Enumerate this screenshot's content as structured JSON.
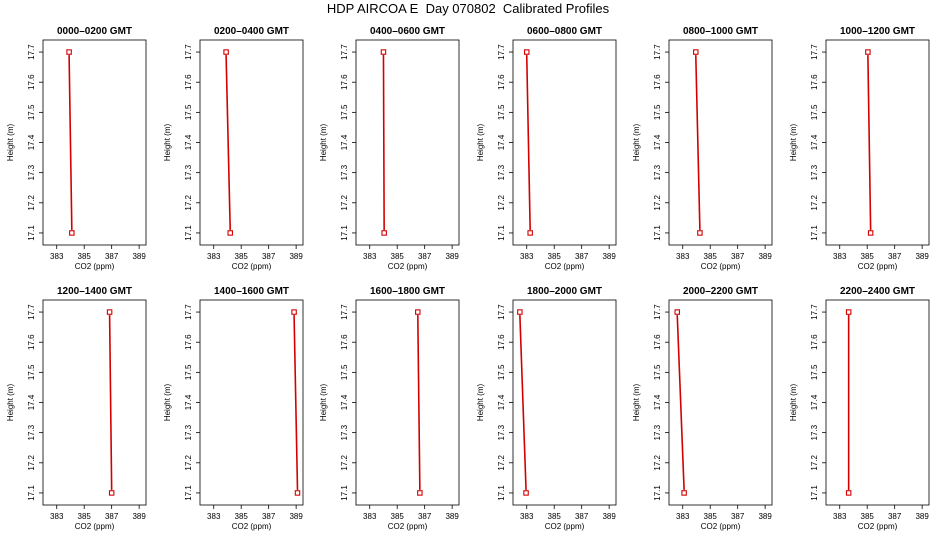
{
  "title": "HDP AIRCOA E  Day 070802  Calibrated Profiles",
  "colors": {
    "series": "#d40000",
    "axis": "#000000"
  },
  "chart_data": [
    {
      "type": "line",
      "title": "0000–0200 GMT",
      "xlabel": "CO2 (ppm)",
      "ylabel": "Height (m)",
      "xlim": [
        382,
        389.5
      ],
      "ylim": [
        17.06,
        17.74
      ],
      "xticks": [
        383,
        385,
        387,
        389
      ],
      "yticks": [
        17.1,
        17.2,
        17.3,
        17.4,
        17.5,
        17.6,
        17.7
      ],
      "grid": false,
      "series": [
        {
          "points": [
            [
              383.9,
              17.7
            ],
            [
              384.1,
              17.1
            ]
          ]
        }
      ]
    },
    {
      "type": "line",
      "title": "0200–0400 GMT",
      "xlabel": "CO2 (ppm)",
      "ylabel": "Height (m)",
      "xlim": [
        382,
        389.5
      ],
      "ylim": [
        17.06,
        17.74
      ],
      "xticks": [
        383,
        385,
        387,
        389
      ],
      "yticks": [
        17.1,
        17.2,
        17.3,
        17.4,
        17.5,
        17.6,
        17.7
      ],
      "grid": false,
      "series": [
        {
          "points": [
            [
              383.9,
              17.7
            ],
            [
              384.2,
              17.1
            ]
          ]
        }
      ]
    },
    {
      "type": "line",
      "title": "0400–0600 GMT",
      "xlabel": "CO2 (ppm)",
      "ylabel": "Height (m)",
      "xlim": [
        382,
        389.5
      ],
      "ylim": [
        17.06,
        17.74
      ],
      "xticks": [
        383,
        385,
        387,
        389
      ],
      "yticks": [
        17.1,
        17.2,
        17.3,
        17.4,
        17.5,
        17.6,
        17.7
      ],
      "grid": false,
      "series": [
        {
          "points": [
            [
              384.0,
              17.7
            ],
            [
              384.05,
              17.1
            ]
          ]
        }
      ]
    },
    {
      "type": "line",
      "title": "0600–0800 GMT",
      "xlabel": "CO2 (ppm)",
      "ylabel": "Height (m)",
      "xlim": [
        382,
        389.5
      ],
      "ylim": [
        17.06,
        17.74
      ],
      "xticks": [
        383,
        385,
        387,
        389
      ],
      "yticks": [
        17.1,
        17.2,
        17.3,
        17.4,
        17.5,
        17.6,
        17.7
      ],
      "grid": false,
      "series": [
        {
          "points": [
            [
              383.0,
              17.7
            ],
            [
              383.25,
              17.1
            ]
          ]
        }
      ]
    },
    {
      "type": "line",
      "title": "0800–1000 GMT",
      "xlabel": "CO2 (ppm)",
      "ylabel": "Height (m)",
      "xlim": [
        382,
        389.5
      ],
      "ylim": [
        17.06,
        17.74
      ],
      "xticks": [
        383,
        385,
        387,
        389
      ],
      "yticks": [
        17.1,
        17.2,
        17.3,
        17.4,
        17.5,
        17.6,
        17.7
      ],
      "grid": false,
      "series": [
        {
          "points": [
            [
              383.95,
              17.7
            ],
            [
              384.25,
              17.1
            ]
          ]
        }
      ]
    },
    {
      "type": "line",
      "title": "1000–1200 GMT",
      "xlabel": "CO2 (ppm)",
      "ylabel": "Height (m)",
      "xlim": [
        382,
        389.5
      ],
      "ylim": [
        17.06,
        17.74
      ],
      "xticks": [
        383,
        385,
        387,
        389
      ],
      "yticks": [
        17.1,
        17.2,
        17.3,
        17.4,
        17.5,
        17.6,
        17.7
      ],
      "grid": false,
      "series": [
        {
          "points": [
            [
              385.05,
              17.7
            ],
            [
              385.25,
              17.1
            ]
          ]
        }
      ]
    },
    {
      "type": "line",
      "title": "1200–1400 GMT",
      "xlabel": "CO2 (ppm)",
      "ylabel": "Height (m)",
      "xlim": [
        382,
        389.5
      ],
      "ylim": [
        17.06,
        17.74
      ],
      "xticks": [
        383,
        385,
        387,
        389
      ],
      "yticks": [
        17.1,
        17.2,
        17.3,
        17.4,
        17.5,
        17.6,
        17.7
      ],
      "grid": false,
      "series": [
        {
          "points": [
            [
              386.85,
              17.7
            ],
            [
              387.0,
              17.1
            ]
          ]
        }
      ]
    },
    {
      "type": "line",
      "title": "1400–1600 GMT",
      "xlabel": "CO2 (ppm)",
      "ylabel": "Height (m)",
      "xlim": [
        382,
        389.5
      ],
      "ylim": [
        17.06,
        17.74
      ],
      "xticks": [
        383,
        385,
        387,
        389
      ],
      "yticks": [
        17.1,
        17.2,
        17.3,
        17.4,
        17.5,
        17.6,
        17.7
      ],
      "grid": false,
      "series": [
        {
          "points": [
            [
              388.85,
              17.7
            ],
            [
              389.1,
              17.1
            ]
          ]
        }
      ]
    },
    {
      "type": "line",
      "title": "1600–1800 GMT",
      "xlabel": "CO2 (ppm)",
      "ylabel": "Height (m)",
      "xlim": [
        382,
        389.5
      ],
      "ylim": [
        17.06,
        17.74
      ],
      "xticks": [
        383,
        385,
        387,
        389
      ],
      "yticks": [
        17.1,
        17.2,
        17.3,
        17.4,
        17.5,
        17.6,
        17.7
      ],
      "grid": false,
      "series": [
        {
          "points": [
            [
              386.5,
              17.7
            ],
            [
              386.65,
              17.1
            ]
          ]
        }
      ]
    },
    {
      "type": "line",
      "title": "1800–2000 GMT",
      "xlabel": "CO2 (ppm)",
      "ylabel": "Height (m)",
      "xlim": [
        382,
        389.5
      ],
      "ylim": [
        17.06,
        17.74
      ],
      "xticks": [
        383,
        385,
        387,
        389
      ],
      "yticks": [
        17.1,
        17.2,
        17.3,
        17.4,
        17.5,
        17.6,
        17.7
      ],
      "grid": false,
      "series": [
        {
          "points": [
            [
              382.5,
              17.7
            ],
            [
              382.95,
              17.1
            ]
          ]
        }
      ]
    },
    {
      "type": "line",
      "title": "2000–2200 GMT",
      "xlabel": "CO2 (ppm)",
      "ylabel": "Height (m)",
      "xlim": [
        382,
        389.5
      ],
      "ylim": [
        17.06,
        17.74
      ],
      "xticks": [
        383,
        385,
        387,
        389
      ],
      "yticks": [
        17.1,
        17.2,
        17.3,
        17.4,
        17.5,
        17.6,
        17.7
      ],
      "grid": false,
      "series": [
        {
          "points": [
            [
              382.6,
              17.7
            ],
            [
              383.1,
              17.1
            ]
          ]
        }
      ]
    },
    {
      "type": "line",
      "title": "2200–2400 GMT",
      "xlabel": "CO2 (ppm)",
      "ylabel": "Height (m)",
      "xlim": [
        382,
        389.5
      ],
      "ylim": [
        17.06,
        17.74
      ],
      "xticks": [
        383,
        385,
        387,
        389
      ],
      "yticks": [
        17.1,
        17.2,
        17.3,
        17.4,
        17.5,
        17.6,
        17.7
      ],
      "grid": false,
      "series": [
        {
          "points": [
            [
              383.65,
              17.7
            ],
            [
              383.65,
              17.1
            ]
          ]
        }
      ]
    }
  ]
}
